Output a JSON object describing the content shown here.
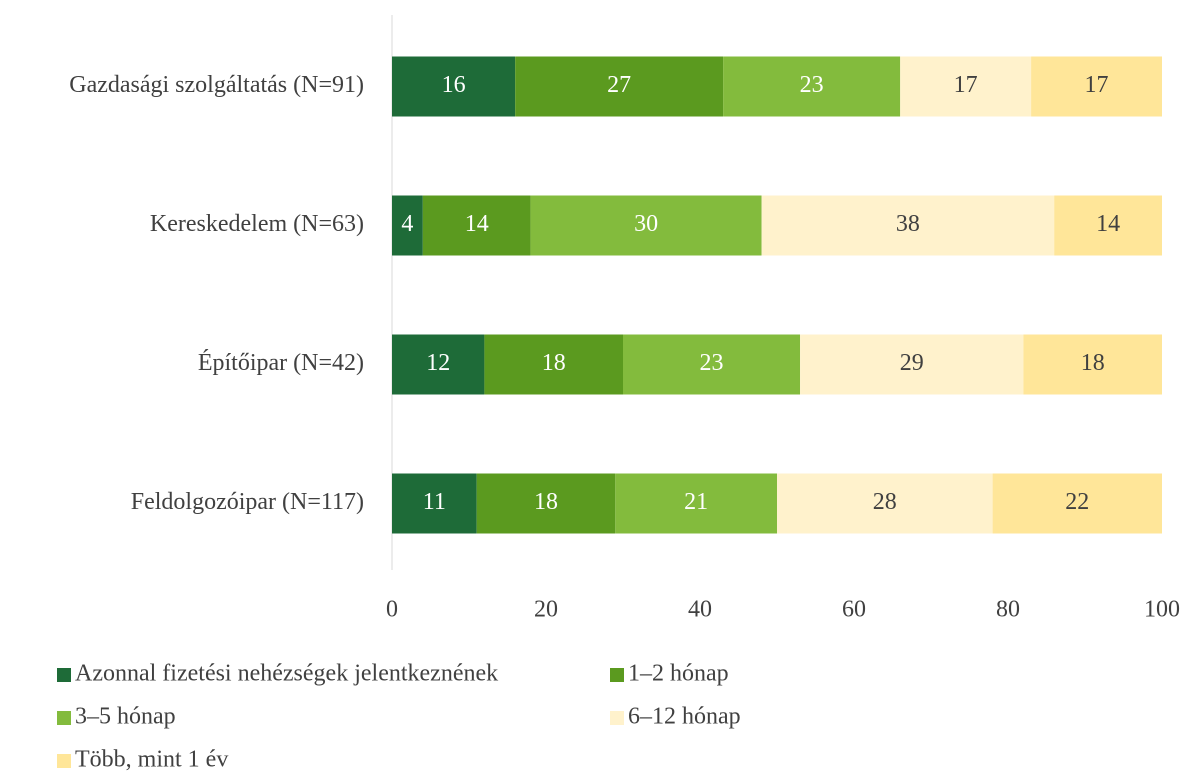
{
  "chart_data": {
    "type": "stacked-barh",
    "categories": [
      "Gazdasági szolgáltatás (N=91)",
      "Kereskedelem (N=63)",
      "Építőipar (N=42)",
      "Feldolgozóipar (N=117)"
    ],
    "series": [
      {
        "name": "Azonnal fizetési nehézségek jelentkeznének",
        "color": "#1e6b38",
        "values": [
          16,
          4,
          12,
          11
        ]
      },
      {
        "name": "1–2 hónap",
        "color": "#5b9a1f",
        "values": [
          27,
          14,
          18,
          18
        ]
      },
      {
        "name": "3–5 hónap",
        "color": "#83bb3d",
        "values": [
          23,
          30,
          23,
          21
        ]
      },
      {
        "name": "6–12 hónap",
        "color": "#fff2cc",
        "values": [
          17,
          38,
          29,
          28
        ]
      },
      {
        "name": "Több, mint 1 év",
        "color": "#ffe699",
        "values": [
          17,
          14,
          18,
          22
        ]
      }
    ],
    "xlim": [
      0,
      100
    ],
    "xticks": [
      0,
      20,
      40,
      60,
      80,
      100
    ],
    "grid": false
  }
}
